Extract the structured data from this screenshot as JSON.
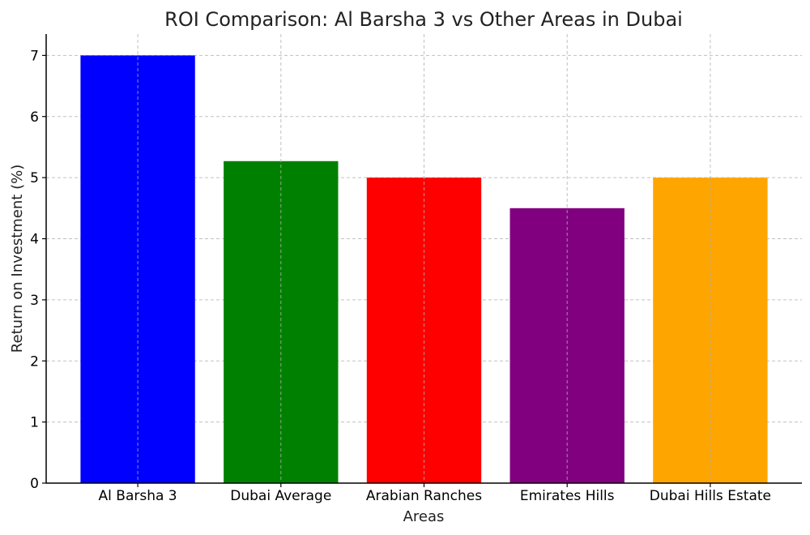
{
  "chart_data": {
    "type": "bar",
    "title": "ROI Comparison: Al Barsha 3 vs Other Areas in Dubai",
    "xlabel": "Areas",
    "ylabel": "Return on Investment (%)",
    "categories": [
      "Al Barsha 3",
      "Dubai Average",
      "Arabian Ranches",
      "Emirates Hills",
      "Dubai Hills Estate"
    ],
    "values": [
      7.0,
      5.27,
      5.0,
      4.5,
      5.0
    ],
    "colors": [
      "#0000ff",
      "#008000",
      "#ff0000",
      "#800080",
      "#ffa500"
    ],
    "ylim": [
      0,
      7.35
    ],
    "yticks": [
      0,
      1,
      2,
      3,
      4,
      5,
      6,
      7
    ],
    "grid": true
  }
}
